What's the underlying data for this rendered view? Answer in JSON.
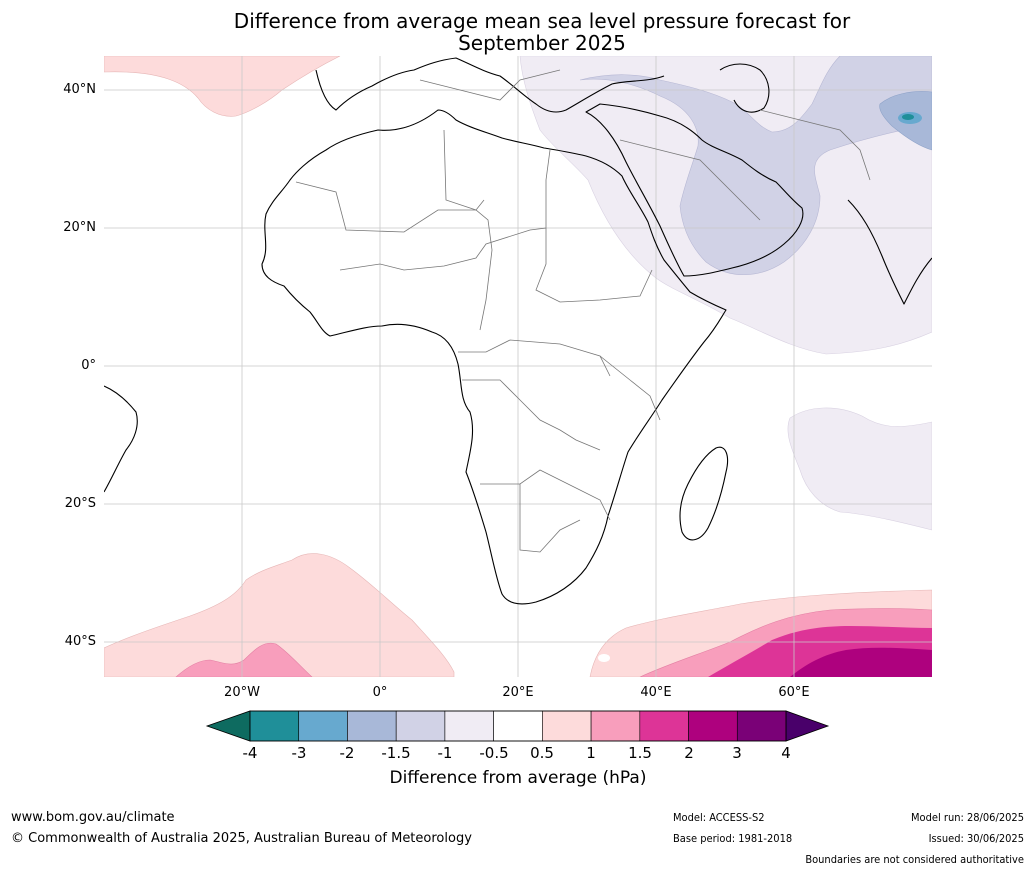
{
  "title": {
    "line1": "Difference from average mean sea level pressure forecast for",
    "line2": "September 2025"
  },
  "map": {
    "lat_labels": [
      "40°N",
      "20°N",
      "0°",
      "20°S",
      "40°S"
    ],
    "lon_labels": [
      "20°W",
      "0°",
      "20°E",
      "40°E",
      "60°E"
    ],
    "extent": {
      "lon": [
        -40,
        80
      ],
      "lat": [
        -45,
        45
      ]
    },
    "gridlines": true
  },
  "colorbar": {
    "title": "Difference from average (hPa)",
    "ticks": [
      "-4",
      "-3",
      "-2",
      "-1.5",
      "-1",
      "-0.5",
      "0.5",
      "1",
      "1.5",
      "2",
      "3",
      "4"
    ],
    "colors": [
      "#0e6b60",
      "#1f8f99",
      "#67a9cf",
      "#a8b8d8",
      "#d1d2e6",
      "#f0ecf4",
      "#ffffff",
      "#fddbdb",
      "#f89ebc",
      "#dd3497",
      "#ae017e",
      "#7a0177",
      "#49006a"
    ]
  },
  "footer": {
    "website": "www.bom.gov.au/climate",
    "copyright": "© Commonwealth of Australia 2025, Australian Bureau of Meteorology",
    "model": "Model: ACCESS-S2",
    "base_period": "Base period: 1981-2018",
    "model_run": "Model run: 28/06/2025",
    "issued": "Issued: 30/06/2025",
    "disclaimer": "Boundaries are not considered authoritative"
  }
}
